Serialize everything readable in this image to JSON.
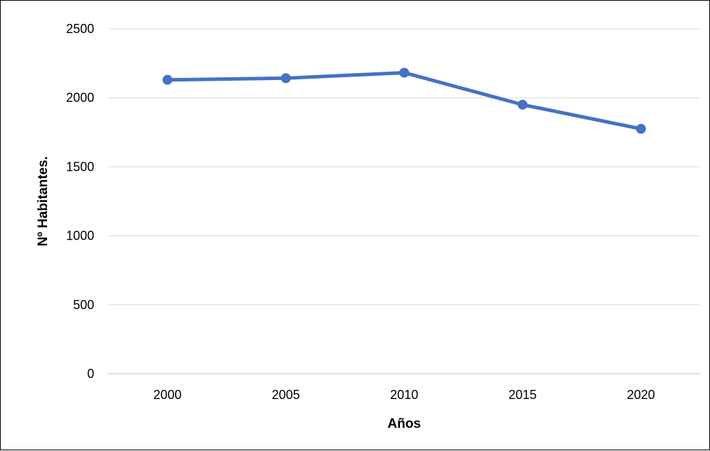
{
  "chart_data": {
    "type": "line",
    "categories": [
      "2000",
      "2005",
      "2010",
      "2015",
      "2020"
    ],
    "series": [
      {
        "values": [
          2130,
          2142,
          2182,
          1950,
          1775
        ],
        "color": "#4472C4"
      }
    ],
    "title": "",
    "xlabel": "Años",
    "ylabel": "Nº Habitantes.",
    "ylim": [
      0,
      2500
    ],
    "yticks": [
      "0",
      "500",
      "1000",
      "1500",
      "2000",
      "2500"
    ],
    "grid": true,
    "legend": "none",
    "colors": {
      "gridline": "#D9D9D9",
      "axis": "#BFBFBF"
    }
  }
}
